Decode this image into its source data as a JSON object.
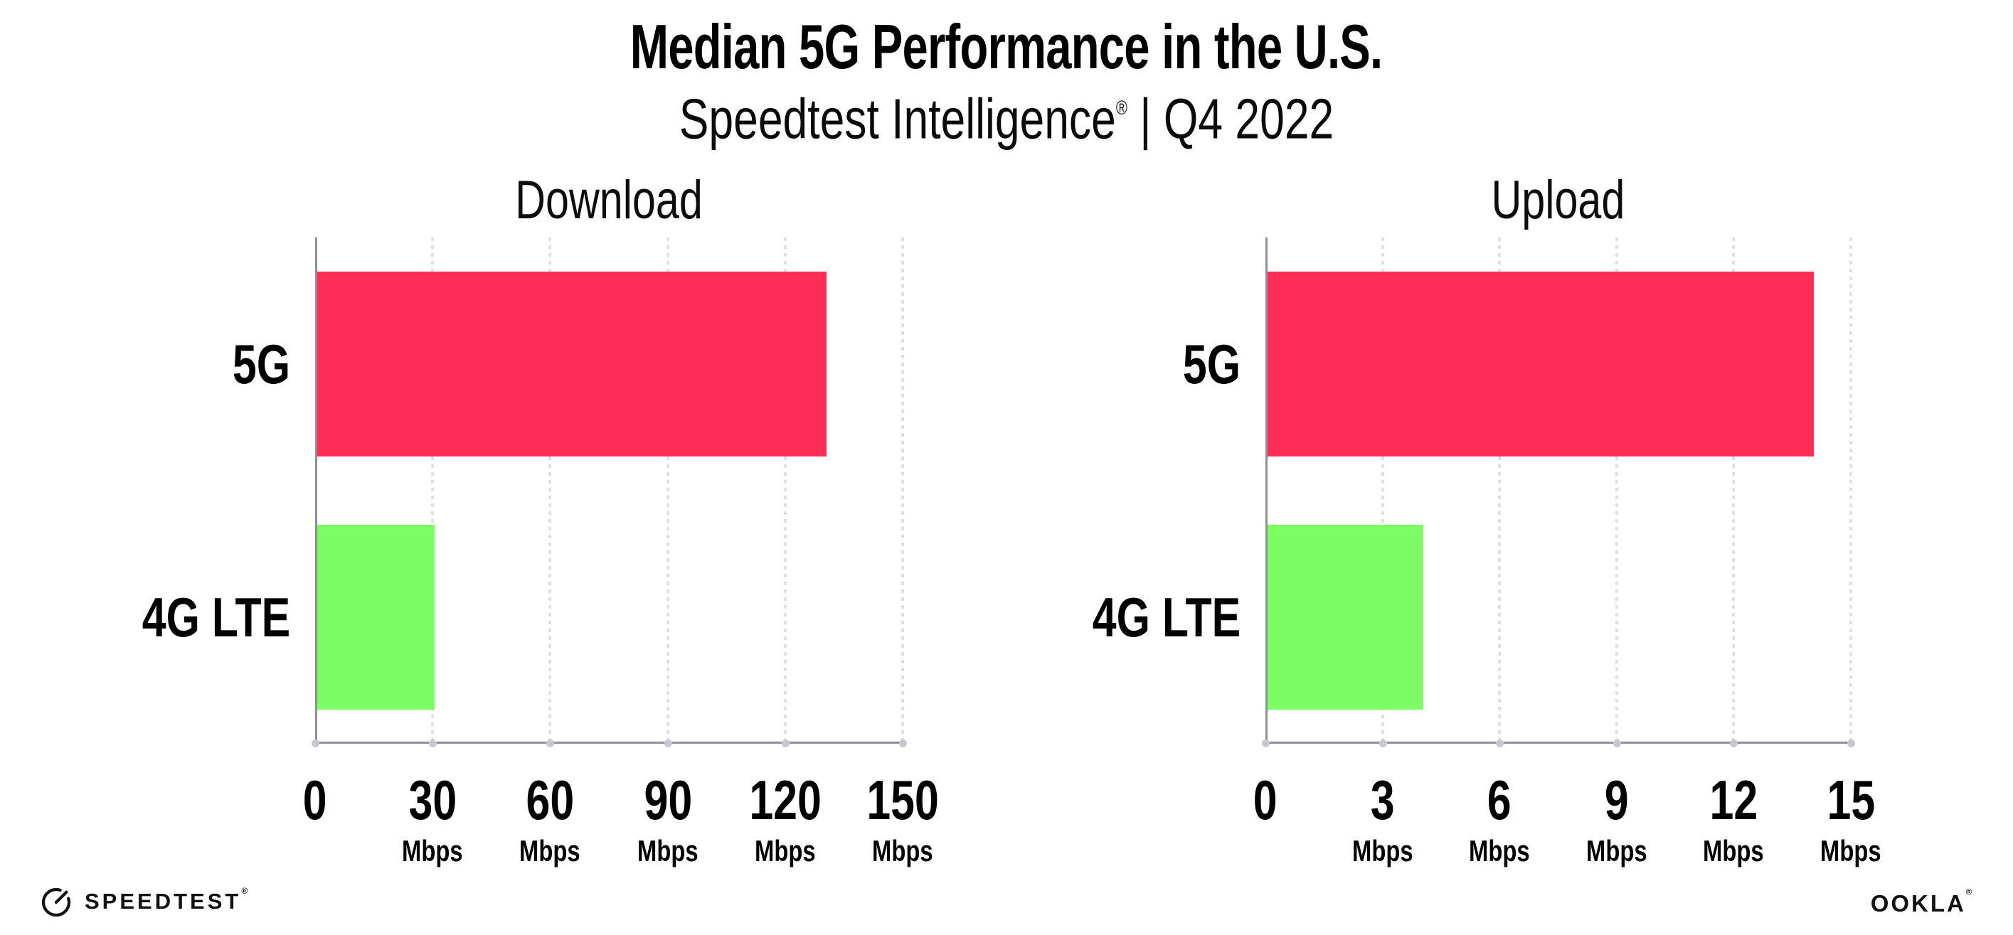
{
  "header": {
    "title": "Median 5G Performance in the U.S.",
    "subtitle_brand": "Speedtest Intelligence",
    "subtitle_reg": "®",
    "subtitle_rest": " | Q4 2022"
  },
  "colors": {
    "bar_5g": "#FD2D58",
    "bar_4g_lte": "#7DFD64",
    "axis_spine": "#90909A",
    "grid_dots": "#DFDFE8",
    "tick_dots": "#C7C7D2",
    "text": "#000000"
  },
  "chart_data": [
    {
      "type": "bar",
      "orientation": "horizontal",
      "title": "Download",
      "categories": [
        "5G",
        "4G LTE"
      ],
      "values": [
        130,
        30
      ],
      "unit": "Mbps",
      "xlim": [
        0,
        150
      ],
      "xticks": [
        0,
        30,
        60,
        90,
        120,
        150
      ],
      "tick_unit_label": "Mbps",
      "grid": "dotted-vertical",
      "legend": "none",
      "bar_colors": [
        "#FD2D58",
        "#7DFD64"
      ]
    },
    {
      "type": "bar",
      "orientation": "horizontal",
      "title": "Upload",
      "categories": [
        "5G",
        "4G LTE"
      ],
      "values": [
        14,
        4
      ],
      "unit": "Mbps",
      "xlim": [
        0,
        15
      ],
      "xticks": [
        0,
        3,
        6,
        9,
        12,
        15
      ],
      "tick_unit_label": "Mbps",
      "grid": "dotted-vertical",
      "legend": "none",
      "bar_colors": [
        "#FD2D58",
        "#7DFD64"
      ]
    }
  ],
  "footer": {
    "speedtest_logo_text": "SPEEDTEST",
    "speedtest_reg": "®",
    "ookla_logo_text": "OOKLA",
    "ookla_reg": "®"
  }
}
